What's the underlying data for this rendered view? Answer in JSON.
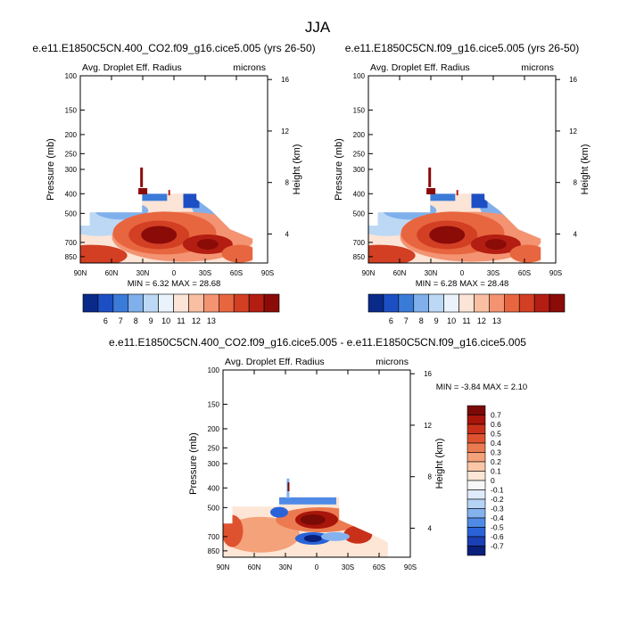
{
  "page": {
    "title": "JJA"
  },
  "palettes": {
    "abs": [
      "#0a2a8a",
      "#1d4fc4",
      "#3b7bd8",
      "#7fb0ec",
      "#bcd8f5",
      "#eaf2fb",
      "#fce4d6",
      "#f9bfa2",
      "#f39372",
      "#e8663f",
      "#d23f23",
      "#b41d12",
      "#8a0b08"
    ],
    "diff": [
      "#0a1f7a",
      "#1b3fb5",
      "#2a63d8",
      "#4f8be6",
      "#84b2ef",
      "#b6d3f6",
      "#dfeafb",
      "#f7f7f7",
      "#fde6d6",
      "#f9c7a8",
      "#f4a27a",
      "#ec7a50",
      "#df5230",
      "#c9301a",
      "#a8150b",
      "#7a0a06"
    ]
  },
  "chart_data": [
    {
      "type": "contour",
      "subtitle": "e.e11.E1850C5CN.400_CO2.f09_g16.cice5.005 (yrs 26-50)",
      "left_label": "Avg. Droplet Eff. Radius",
      "right_label": "microns",
      "ylabel": "Pressure (mb)",
      "y2label": "Height (km)",
      "x_ticks": [
        "90N",
        "60N",
        "30N",
        "0",
        "30S",
        "60S",
        "90S"
      ],
      "p_ticks": [
        "100",
        "150",
        "200",
        "250",
        "300",
        "400",
        "500",
        "700",
        "850"
      ],
      "h_ticks": [
        "16",
        "12",
        "8",
        "4"
      ],
      "stats": "MIN =  6.32  MAX = 28.68",
      "colorbar_labels": [
        "6",
        "7",
        "8",
        "9",
        "10",
        "11",
        "12",
        "13"
      ]
    },
    {
      "type": "contour",
      "subtitle": "e.e11.E1850C5CN.f09_g16.cice5.005 (yrs 26-50)",
      "left_label": "Avg. Droplet Eff. Radius",
      "right_label": "microns",
      "ylabel": "Pressure (mb)",
      "y2label": "Height (km)",
      "x_ticks": [
        "90N",
        "60N",
        "30N",
        "0",
        "30S",
        "60S",
        "90S"
      ],
      "p_ticks": [
        "100",
        "150",
        "200",
        "250",
        "300",
        "400",
        "500",
        "700",
        "850"
      ],
      "h_ticks": [
        "16",
        "12",
        "8",
        "4"
      ],
      "stats": "MIN =  6.28  MAX = 28.48",
      "colorbar_labels": [
        "6",
        "7",
        "8",
        "9",
        "10",
        "11",
        "12",
        "13"
      ]
    },
    {
      "type": "contour",
      "subtitle": "e.e11.E1850C5CN.400_CO2.f09_g16.cice5.005 - e.e11.E1850C5CN.f09_g16.cice5.005",
      "left_label": "Avg. Droplet Eff. Radius",
      "right_label": "microns",
      "ylabel": "Pressure (mb)",
      "y2label": "Height (km)",
      "x_ticks": [
        "90N",
        "60N",
        "30N",
        "0",
        "30S",
        "60S",
        "90S"
      ],
      "p_ticks": [
        "100",
        "150",
        "200",
        "250",
        "300",
        "400",
        "500",
        "700",
        "850"
      ],
      "h_ticks": [
        "16",
        "12",
        "8",
        "4"
      ],
      "stats": "MIN = -3.84  MAX =  2.10",
      "colorbar_labels": [
        "0.7",
        "0.6",
        "0.5",
        "0.4",
        "0.3",
        "0.2",
        "0.1",
        "0",
        "-0.1",
        "-0.2",
        "-0.3",
        "-0.4",
        "-0.5",
        "-0.6",
        "-0.7"
      ]
    }
  ]
}
